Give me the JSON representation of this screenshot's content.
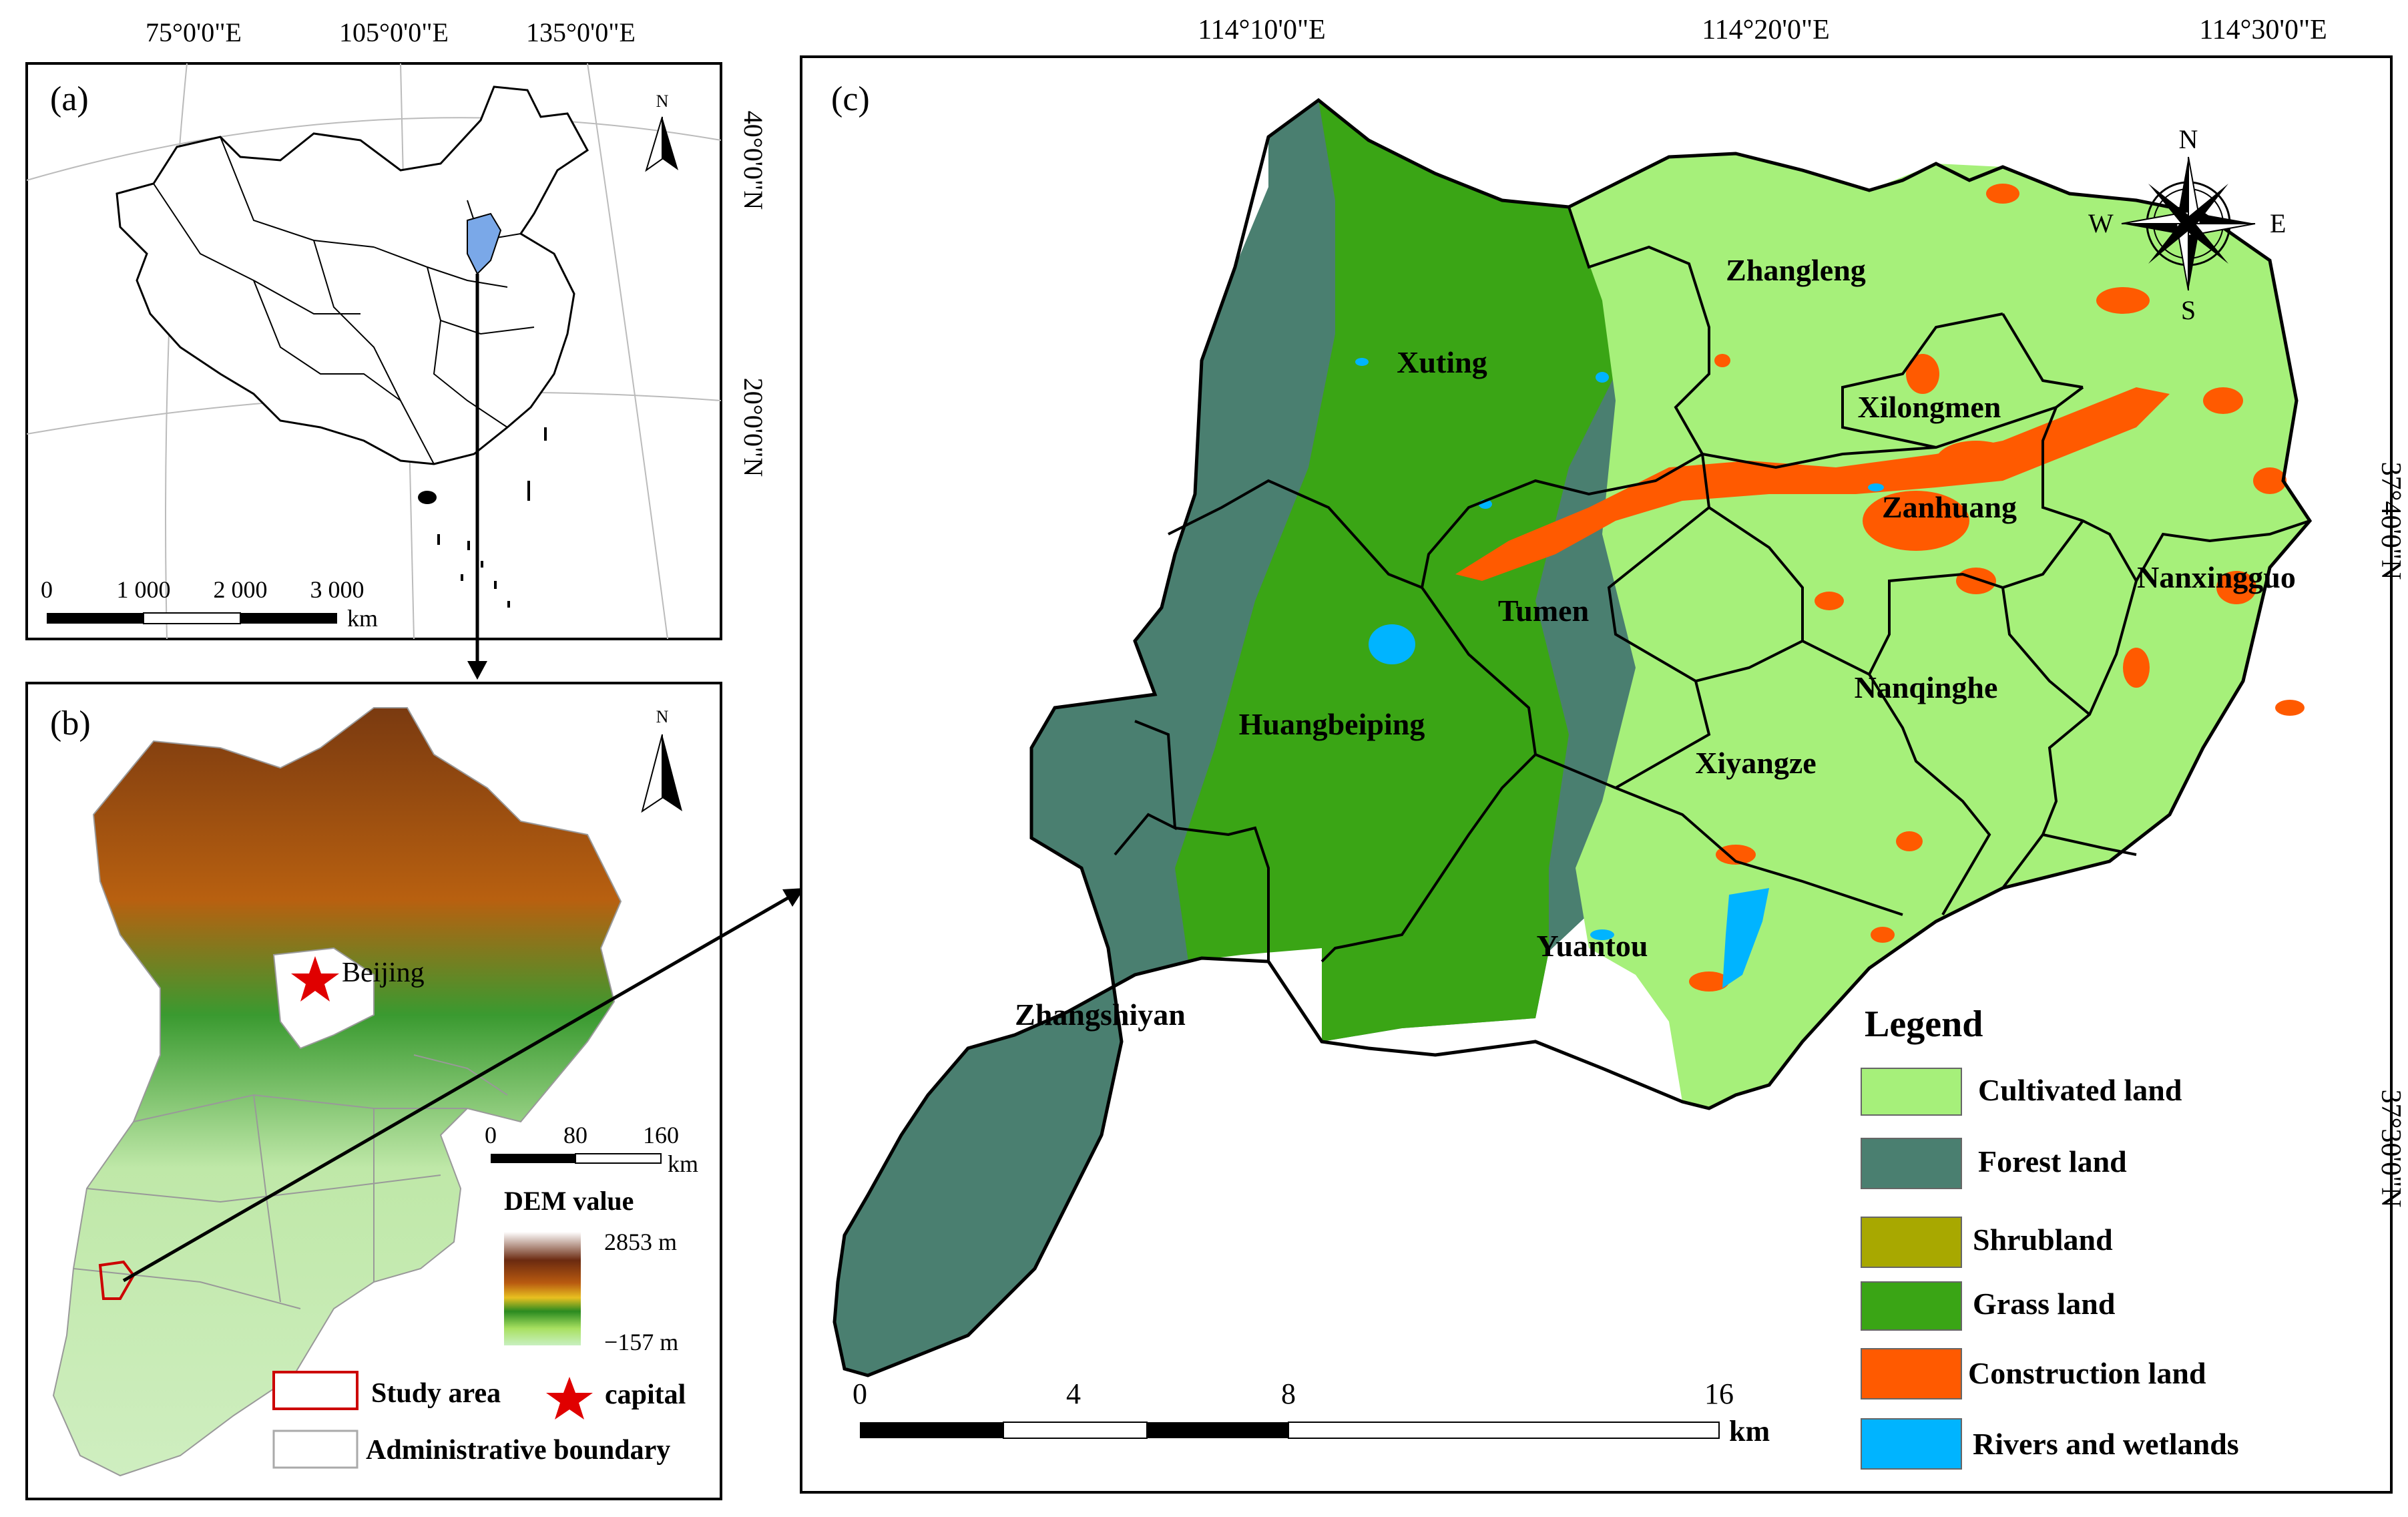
{
  "panel_a": {
    "label": "(a)",
    "lon_ticks": [
      "75°0'0\"E",
      "105°0'0\"E",
      "135°0'0\"E"
    ],
    "lat_ticks": [
      "40°0'0\"N",
      "20°0'0\"N"
    ],
    "north": "N",
    "scale_ticks": [
      "0",
      "1 000",
      "2 000",
      "3 000"
    ],
    "scale_unit": "km"
  },
  "panel_b": {
    "label": "(b)",
    "north": "N",
    "city": "Beijing",
    "scale_ticks": [
      "0",
      "80",
      "160"
    ],
    "scale_unit": "km",
    "dem_title": "DEM value",
    "dem_max": "2853 m",
    "dem_min": "−157 m",
    "legend_study_area": "Study area",
    "legend_capital": "capital",
    "legend_admin": "Administrative boundary"
  },
  "panel_c": {
    "label": "(c)",
    "lon_ticks": [
      "114°10'0\"E",
      "114°20'0\"E",
      "114°30'0\"E"
    ],
    "lat_ticks": [
      "37°40'0\"N",
      "37°30'0\"N"
    ],
    "compass": {
      "n": "N",
      "s": "S",
      "e": "E",
      "w": "W"
    },
    "towns": [
      "Zhangleng",
      "Xuting",
      "Xilongmen",
      "Zanhuang",
      "Nanxingguo",
      "Tumen",
      "Nanqinghe",
      "Huangbeiping",
      "Xiyangze",
      "Yuantou",
      "Zhangshiyan"
    ],
    "scale_ticks": [
      "0",
      "4",
      "8",
      "16"
    ],
    "scale_unit": "km",
    "legend_title": "Legend",
    "legend": [
      {
        "label": "Cultivated land",
        "color": "#a6f07a"
      },
      {
        "label": "Forest land",
        "color": "#4a7f70"
      },
      {
        "label": "Shrubland",
        "color": "#a8a800"
      },
      {
        "label": "Grass land",
        "color": "#3aa515"
      },
      {
        "label": "Construction land",
        "color": "#ff5a00"
      },
      {
        "label": "Rivers and wetlands",
        "color": "#00b4ff"
      }
    ]
  }
}
